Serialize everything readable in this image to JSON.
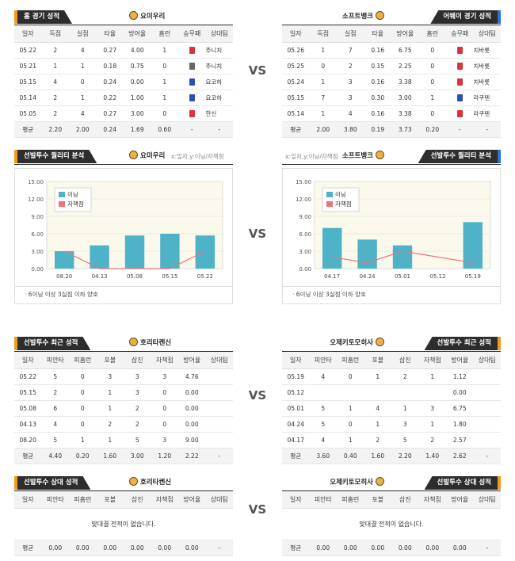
{
  "vs_label": "VS",
  "section1": {
    "left": {
      "title": "홈 경기 성적",
      "team": "요미우리",
      "columns": [
        "일자",
        "득점",
        "실점",
        "타율",
        "방어율",
        "홈런",
        "승무패",
        "상대팀"
      ],
      "rows": [
        [
          "05.22",
          "2",
          "4",
          "0.27",
          "4.00",
          "1",
          "L",
          "주니치"
        ],
        [
          "05.21",
          "1",
          "1",
          "0.18",
          "0.75",
          "0",
          "D",
          "주니치"
        ],
        [
          "05.15",
          "4",
          "0",
          "0.24",
          "0.00",
          "1",
          "W",
          "요코하"
        ],
        [
          "05.14",
          "2",
          "1",
          "0.22",
          "1.00",
          "1",
          "W",
          "요코하"
        ],
        [
          "05.05",
          "2",
          "4",
          "0.27",
          "3.00",
          "0",
          "L",
          "한신"
        ]
      ],
      "avg": [
        "평균",
        "2.20",
        "2.00",
        "0.24",
        "1.69",
        "0.60",
        "-",
        "-"
      ]
    },
    "right": {
      "title": "어웨이 경기 성적",
      "team": "소프트뱅크",
      "columns": [
        "일자",
        "득점",
        "실점",
        "타율",
        "방어율",
        "홈런",
        "승무패",
        "상대팀"
      ],
      "rows": [
        [
          "05.26",
          "1",
          "7",
          "0.16",
          "6.75",
          "0",
          "L",
          "치바롯"
        ],
        [
          "05.25",
          "0",
          "2",
          "0.15",
          "2.25",
          "0",
          "L",
          "치바롯"
        ],
        [
          "05.24",
          "1",
          "3",
          "0.16",
          "3.38",
          "0",
          "L",
          "치바롯"
        ],
        [
          "05.15",
          "7",
          "3",
          "0.30",
          "3.00",
          "1",
          "W",
          "라쿠텐"
        ],
        [
          "05.14",
          "1",
          "4",
          "0.16",
          "3.38",
          "0",
          "L",
          "라쿠텐"
        ]
      ],
      "avg": [
        "평균",
        "2.00",
        "3.80",
        "0.19",
        "3.73",
        "0.20",
        "-",
        "-"
      ]
    }
  },
  "section2": {
    "left": {
      "title": "선발투수 퀄리티 분석",
      "team": "요미우리",
      "axis_note": "x:일자,y:이닝/자책점",
      "legend": [
        "이닝",
        "자책점"
      ],
      "footnote": "6이닝 이상 3실점 이하 양호"
    },
    "right": {
      "title": "선발투수 퀄리티 분석",
      "team": "소프트뱅크",
      "axis_note": "x:일자,y:이닝/자책점",
      "legend": [
        "이닝",
        "자책점"
      ],
      "footnote": "6이닝 이상 3실점 이하 양호"
    }
  },
  "chart_data": [
    {
      "type": "bar",
      "categories": [
        "08.20",
        "04.13",
        "05.08",
        "05.15",
        "05.22"
      ],
      "series": [
        {
          "name": "이닝",
          "values": [
            3.0,
            4.0,
            5.7,
            6.0,
            5.7
          ]
        },
        {
          "name": "자책점",
          "values": [
            3,
            0,
            0,
            0,
            3
          ]
        }
      ],
      "ylim": [
        0,
        15
      ],
      "yticks": [
        "0.00",
        "3.00",
        "6.00",
        "9.00",
        "12.00",
        "15.00"
      ],
      "colors": [
        "#4eb3c7",
        "#f0707a"
      ]
    },
    {
      "type": "bar",
      "categories": [
        "04.17",
        "04.24",
        "05.01",
        "05.12",
        "05.19"
      ],
      "series": [
        {
          "name": "이닝",
          "values": [
            7.0,
            5.0,
            4.0,
            null,
            8.0
          ]
        },
        {
          "name": "자책점",
          "values": [
            2,
            1,
            3,
            null,
            1
          ]
        }
      ],
      "ylim": [
        0,
        15
      ],
      "yticks": [
        "0.00",
        "3.00",
        "6.00",
        "9.00",
        "12.00",
        "15.00"
      ],
      "colors": [
        "#4eb3c7",
        "#f0707a"
      ]
    }
  ],
  "section3": {
    "left": {
      "title": "선발투수 최근 성적",
      "team": "호리타켄신",
      "columns": [
        "일자",
        "피안타",
        "피홈런",
        "포볼",
        "삼진",
        "자책점",
        "방어율",
        "상대팀"
      ],
      "rows": [
        [
          "05.22",
          "5",
          "0",
          "3",
          "3",
          "3",
          "4.76",
          ""
        ],
        [
          "05.15",
          "2",
          "0",
          "1",
          "3",
          "0",
          "0.00",
          ""
        ],
        [
          "05.08",
          "6",
          "0",
          "1",
          "2",
          "0",
          "0.00",
          ""
        ],
        [
          "04.13",
          "4",
          "0",
          "2",
          "2",
          "0",
          "0.00",
          ""
        ],
        [
          "08.20",
          "5",
          "1",
          "1",
          "5",
          "3",
          "9.00",
          ""
        ]
      ],
      "avg": [
        "평균",
        "4.40",
        "0.20",
        "1.60",
        "3.00",
        "1.20",
        "2.22",
        "-"
      ]
    },
    "right": {
      "title": "선발투수 최근 성적",
      "team": "오제키토모히사",
      "columns": [
        "일자",
        "피안타",
        "피홈런",
        "포볼",
        "삼진",
        "자책점",
        "방어율",
        "상대팀"
      ],
      "rows": [
        [
          "05.19",
          "4",
          "0",
          "1",
          "2",
          "1",
          "1.12",
          ""
        ],
        [
          "05.12",
          "",
          "",
          "",
          "",
          "",
          "0.00",
          ""
        ],
        [
          "05.01",
          "5",
          "1",
          "4",
          "1",
          "3",
          "6.75",
          ""
        ],
        [
          "04.24",
          "5",
          "0",
          "1",
          "3",
          "1",
          "1.80",
          ""
        ],
        [
          "04.17",
          "4",
          "1",
          "2",
          "5",
          "2",
          "2.57",
          ""
        ]
      ],
      "avg": [
        "평균",
        "3.60",
        "0.40",
        "1.60",
        "2.20",
        "1.40",
        "2.62",
        "-"
      ]
    }
  },
  "section4": {
    "left": {
      "title": "선발투수 상대 성적",
      "team": "호리타켄신",
      "columns": [
        "일자",
        "피안타",
        "피홈런",
        "포볼",
        "삼진",
        "자책점",
        "방어율",
        "상대팀"
      ],
      "no_data": "맞대결 전적이 없습니다.",
      "avg": [
        "평균",
        "0.00",
        "0.00",
        "0.00",
        "0.00",
        "0.00",
        "0.00",
        "-"
      ]
    },
    "right": {
      "title": "선발투수 상대 성적",
      "team": "오제키토모히사",
      "columns": [
        "일자",
        "피안타",
        "피홈런",
        "포볼",
        "삼진",
        "자책점",
        "방어율",
        "상대팀"
      ],
      "no_data": "맞대결 전적이 없습니다.",
      "avg": [
        "평균",
        "0.00",
        "0.00",
        "0.00",
        "0.00",
        "0.00",
        "0.00",
        "-"
      ]
    }
  }
}
